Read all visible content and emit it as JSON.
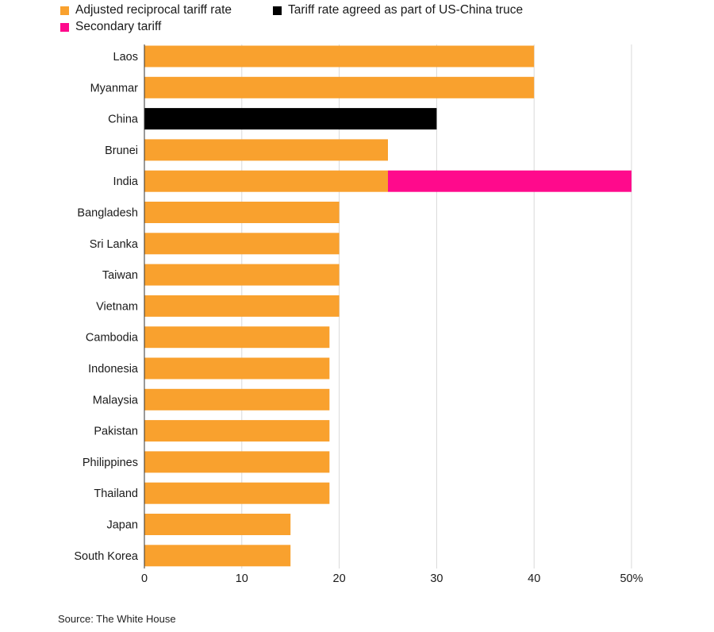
{
  "legend": [
    {
      "label": "Adjusted reciprocal tariff rate",
      "color": "#F9A12E"
    },
    {
      "label": "Tariff rate agreed as part of US-China truce",
      "color": "#000000"
    },
    {
      "label": "Secondary tariff",
      "color": "#FF0A8C"
    }
  ],
  "source": "Source: The White House",
  "chart_data": {
    "type": "bar",
    "orientation": "horizontal",
    "stacked": true,
    "categories": [
      "Laos",
      "Myanmar",
      "China",
      "Brunei",
      "India",
      "Bangladesh",
      "Sri Lanka",
      "Taiwan",
      "Vietnam",
      "Cambodia",
      "Indonesia",
      "Malaysia",
      "Pakistan",
      "Philippines",
      "Thailand",
      "Japan",
      "South Korea"
    ],
    "series": [
      {
        "name": "Adjusted reciprocal tariff rate",
        "color": "#F9A12E",
        "values": [
          40,
          40,
          0,
          25,
          25,
          20,
          20,
          20,
          20,
          19,
          19,
          19,
          19,
          19,
          19,
          15,
          15
        ]
      },
      {
        "name": "Tariff rate agreed as part of US-China truce",
        "color": "#000000",
        "values": [
          0,
          0,
          30,
          0,
          0,
          0,
          0,
          0,
          0,
          0,
          0,
          0,
          0,
          0,
          0,
          0,
          0
        ]
      },
      {
        "name": "Secondary tariff",
        "color": "#FF0A8C",
        "values": [
          0,
          0,
          0,
          0,
          25,
          0,
          0,
          0,
          0,
          0,
          0,
          0,
          0,
          0,
          0,
          0,
          0
        ]
      }
    ],
    "xlim": [
      0,
      50
    ],
    "xticks": [
      0,
      10,
      20,
      30,
      40,
      50
    ],
    "xtick_labels": [
      "0",
      "10",
      "20",
      "30",
      "40",
      "50%"
    ],
    "grid": true,
    "legend_position": "top-left"
  }
}
